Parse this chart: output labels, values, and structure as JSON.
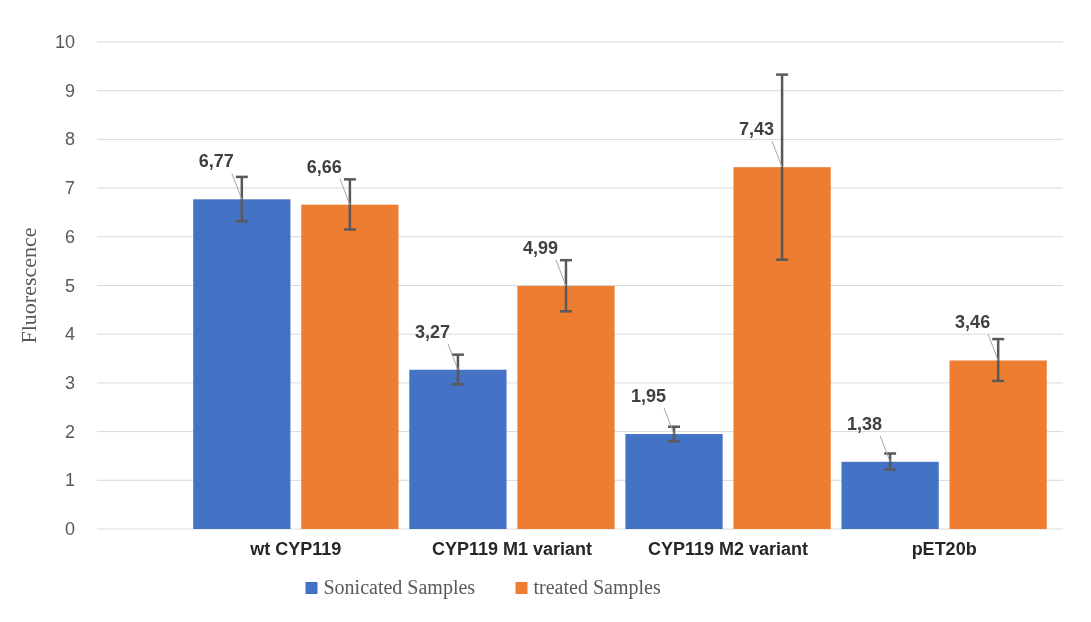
{
  "chart_data": {
    "type": "bar",
    "ylabel": "Fluorescence",
    "categories": [
      "wt CYP119",
      "CYP119 M1 variant",
      "CYP119 M2 variant",
      "pET20b"
    ],
    "series": [
      {
        "name": "Sonicated Samples",
        "color": "#4472c4",
        "values": [
          6.77,
          3.27,
          1.95,
          1.38
        ],
        "value_labels": [
          "6,77",
          "3,27",
          "1,95",
          "1,38"
        ],
        "errors": [
          [
            6.32,
            7.23
          ],
          [
            2.97,
            3.58
          ],
          [
            1.8,
            2.1
          ],
          [
            1.22,
            1.55
          ]
        ]
      },
      {
        "name": "treated Samples",
        "color": "#ed7d31",
        "values": [
          6.66,
          4.99,
          7.43,
          3.46
        ],
        "value_labels": [
          "6,66",
          "4,99",
          "7,43",
          "3,46"
        ],
        "errors": [
          [
            6.15,
            7.18
          ],
          [
            4.47,
            5.52
          ],
          [
            5.53,
            9.33
          ],
          [
            3.04,
            3.9
          ]
        ]
      }
    ],
    "ylim": [
      0,
      10
    ],
    "yticks": [
      0,
      1,
      2,
      3,
      4,
      5,
      6,
      7,
      8,
      9,
      10
    ],
    "grid": "y",
    "legend": "bottom"
  }
}
